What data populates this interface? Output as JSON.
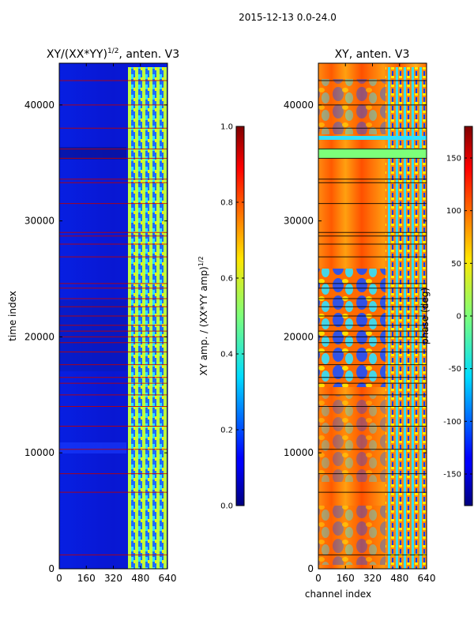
{
  "suptitle": "2015-12-13 0.0-24.0",
  "chart_data": [
    {
      "type": "heatmap",
      "title": "XY/(XX*YY)",
      "title_exponent": "1/2",
      "title_suffix": ", anten. V3",
      "xlabel": "",
      "ylabel": "time index",
      "xlim": [
        0,
        640
      ],
      "ylim": [
        0,
        43600
      ],
      "xticks": [
        "0",
        "160",
        "320",
        "480",
        "640"
      ],
      "xtick_values": [
        0,
        160,
        320,
        480,
        640
      ],
      "yticks": [
        "0",
        "10000",
        "20000",
        "30000",
        "40000"
      ],
      "ytick_values": [
        0,
        10000,
        20000,
        30000,
        40000
      ],
      "colorbar": {
        "label": "XY amp. / (XX*YY amp)",
        "label_exponent": "1/2",
        "range": [
          0.0,
          1.0
        ],
        "ticks": [
          "0.0",
          "0.2",
          "0.4",
          "0.6",
          "0.8",
          "1.0"
        ],
        "tick_values": [
          0.0,
          0.2,
          0.4,
          0.6,
          0.8,
          1.0
        ]
      },
      "flagged_rows": [
        1200,
        6600,
        8200,
        10300,
        12300,
        14000,
        15000,
        16000,
        16500,
        17600,
        18700,
        19500,
        20000,
        20500,
        21000,
        21800,
        22600,
        23300,
        24200,
        24600,
        26900,
        28000,
        28700,
        29000,
        31500,
        33300,
        33600,
        35400,
        36200,
        38000,
        40000,
        42100
      ]
    },
    {
      "type": "heatmap",
      "title": "XY, anten. V3",
      "xlabel": "channel index",
      "ylabel": "",
      "xlim": [
        0,
        640
      ],
      "ylim": [
        0,
        43600
      ],
      "xticks": [
        "0",
        "160",
        "320",
        "480",
        "640"
      ],
      "xtick_values": [
        0,
        160,
        320,
        480,
        640
      ],
      "yticks": [
        "0",
        "10000",
        "20000",
        "30000",
        "40000"
      ],
      "ytick_values": [
        0,
        10000,
        20000,
        30000,
        40000
      ],
      "colorbar": {
        "label": "phase (deg)",
        "range": [
          -180,
          180
        ],
        "ticks": [
          "-150",
          "-100",
          "-50",
          "0",
          "50",
          "100",
          "150"
        ],
        "tick_values": [
          -150,
          -100,
          -50,
          0,
          50,
          100,
          150
        ]
      },
      "flagged_rows": [
        1200,
        6600,
        8200,
        10300,
        12300,
        14000,
        15000,
        16000,
        16500,
        17600,
        18700,
        19500,
        20000,
        20500,
        21000,
        21800,
        22600,
        23300,
        24200,
        24600,
        26900,
        28000,
        28700,
        29000,
        31500,
        33300,
        33600,
        35400,
        36200,
        38000,
        40000,
        42100
      ]
    }
  ]
}
